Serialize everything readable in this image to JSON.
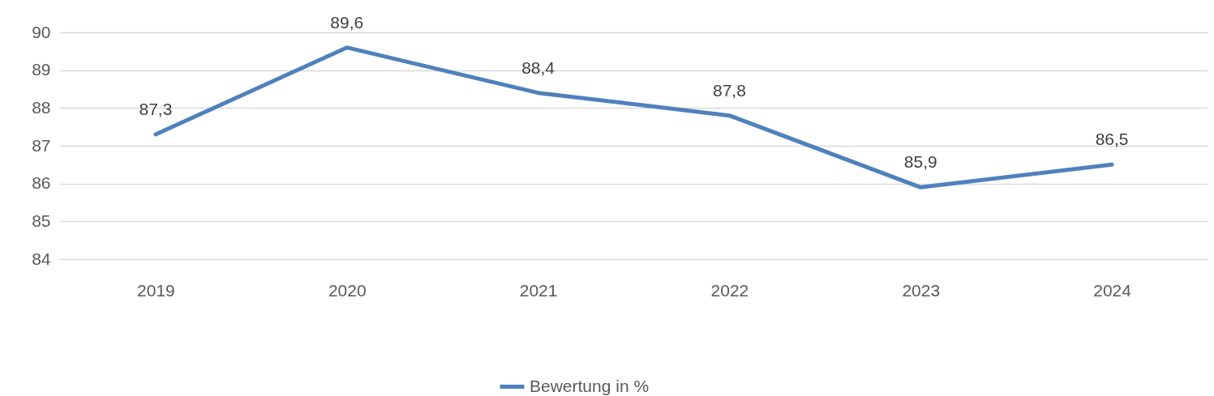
{
  "chart_data": {
    "type": "line",
    "categories": [
      "2019",
      "2020",
      "2021",
      "2022",
      "2023",
      "2024"
    ],
    "series": [
      {
        "name": "Bewertung in %",
        "color": "#4f81bd",
        "values": [
          87.3,
          89.6,
          88.4,
          87.8,
          85.9,
          86.5
        ],
        "value_labels": [
          "87,3",
          "89,6",
          "88,4",
          "87,8",
          "85,9",
          "86,5"
        ]
      }
    ],
    "ylim": [
      84,
      90
    ],
    "yticks": [
      84,
      85,
      86,
      87,
      88,
      89,
      90
    ],
    "grid": "y",
    "legend": "bottom",
    "marker": "none",
    "line_style": "solid"
  }
}
